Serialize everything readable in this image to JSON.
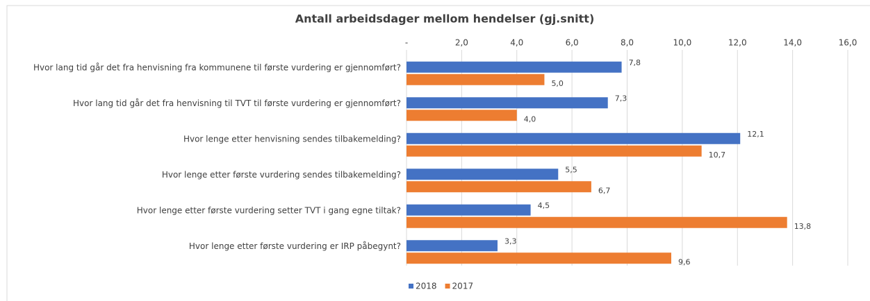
{
  "chart_data": {
    "type": "bar",
    "orientation": "horizontal",
    "title": "Antall arbeidsdager  mellom hendelser (gj.snitt)",
    "categories": [
      "Hvor lang tid går det fra henvisning fra kommunene til første vurdering er gjennomført?",
      "Hvor lang tid går det fra henvisning til TVT til første vurdering er gjennomført?",
      "Hvor lenge etter henvisning sendes tilbakemelding?",
      "Hvor lenge etter første vurdering sendes tilbakemelding?",
      "Hvor lenge etter første vurdering setter TVT i gang egne tiltak?",
      "Hvor lenge etter første vurdering er IRP påbegynt?"
    ],
    "series": [
      {
        "name": "2018",
        "color": "#4472c4",
        "values": [
          7.8,
          7.3,
          12.1,
          5.5,
          4.5,
          3.3
        ],
        "value_labels": [
          "7,8",
          "7,3",
          "12,1",
          "5,5",
          "4,5",
          "3,3"
        ]
      },
      {
        "name": "2017",
        "color": "#ed7d31",
        "values": [
          5.0,
          4.0,
          10.7,
          6.7,
          13.8,
          9.6
        ],
        "value_labels": [
          "5,0",
          "4,0",
          "10,7",
          "6,7",
          "13,8",
          "9,6"
        ]
      }
    ],
    "xlim": [
      0,
      16
    ],
    "xticks": [
      {
        "value": 0,
        "label": "-"
      },
      {
        "value": 2,
        "label": "2,0"
      },
      {
        "value": 4,
        "label": "4,0"
      },
      {
        "value": 6,
        "label": "6,0"
      },
      {
        "value": 8,
        "label": "8,0"
      },
      {
        "value": 10,
        "label": "10,0"
      },
      {
        "value": 12,
        "label": "12,0"
      },
      {
        "value": 14,
        "label": "14,0"
      },
      {
        "value": 16,
        "label": "16,0"
      }
    ],
    "grid": true,
    "legend": "bottom"
  }
}
